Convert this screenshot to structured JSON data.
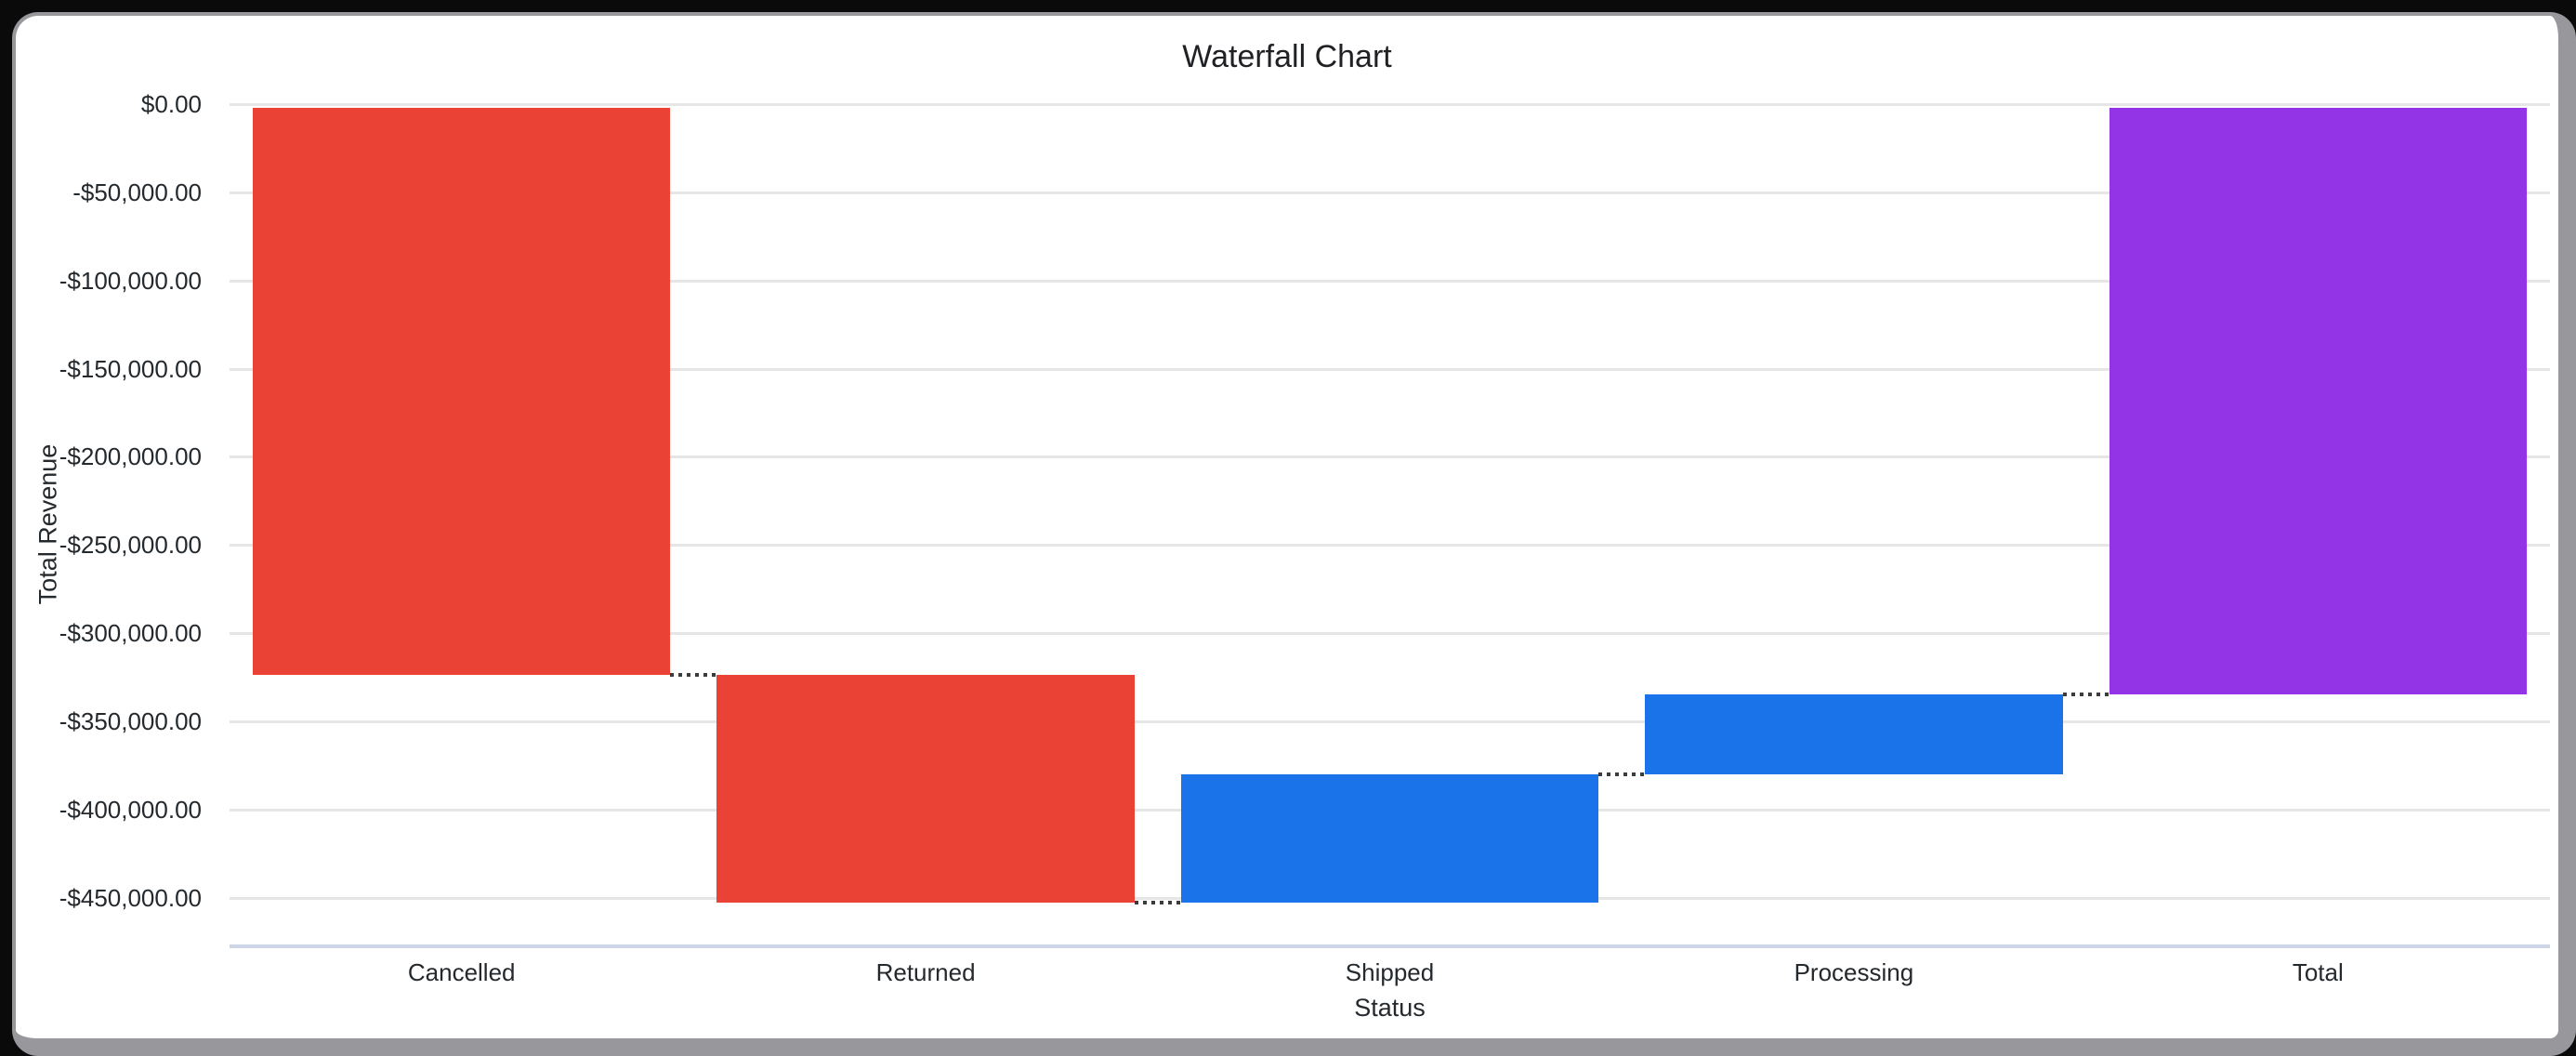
{
  "page": {
    "background": "#0a0a0a",
    "card": {
      "background": "#ffffff",
      "border_color": "#97979c"
    }
  },
  "chart_data": {
    "type": "waterfall",
    "title": "Waterfall Chart",
    "xlabel": "Status",
    "ylabel": "Total Revenue",
    "categories": [
      "Cancelled",
      "Returned",
      "Shipped",
      "Processing",
      "Total"
    ],
    "bars": [
      {
        "label": "Cancelled",
        "value": -323700,
        "start": 0,
        "end": -323700,
        "role": "decrease",
        "color": "#EA4335"
      },
      {
        "label": "Returned",
        "value": -129200,
        "start": -323700,
        "end": -452900,
        "role": "decrease",
        "color": "#EA4335"
      },
      {
        "label": "Shipped",
        "value": 72700,
        "start": -452900,
        "end": -380200,
        "role": "increase",
        "color": "#1A73E8"
      },
      {
        "label": "Processing",
        "value": 45400,
        "start": -380200,
        "end": -334800,
        "role": "increase",
        "color": "#1A73E8"
      },
      {
        "label": "Total",
        "value": -334800,
        "start": 0,
        "end": -334800,
        "role": "total",
        "color": "#9334E6"
      }
    ],
    "connectors": [
      {
        "from": "Cancelled",
        "to": "Returned",
        "value": -323700
      },
      {
        "from": "Returned",
        "to": "Shipped",
        "value": -452900
      },
      {
        "from": "Shipped",
        "to": "Processing",
        "value": -380200
      },
      {
        "from": "Processing",
        "to": "Total",
        "value": -334800
      }
    ],
    "y_ticks": [
      {
        "label": "$0.00",
        "value": 0
      },
      {
        "label": "-$50,000.00",
        "value": -50000
      },
      {
        "label": "-$100,000.00",
        "value": -100000
      },
      {
        "label": "-$150,000.00",
        "value": -150000
      },
      {
        "label": "-$200,000.00",
        "value": -200000
      },
      {
        "label": "-$250,000.00",
        "value": -250000
      },
      {
        "label": "-$300,000.00",
        "value": -300000
      },
      {
        "label": "-$350,000.00",
        "value": -350000
      },
      {
        "label": "-$400,000.00",
        "value": -400000
      },
      {
        "label": "-$450,000.00",
        "value": -450000
      }
    ],
    "ylim": [
      -476600,
      0
    ],
    "grid": "horizontal",
    "legend": "none",
    "connector_style": "dotted",
    "style": {
      "grid_color": "#e6e6e6",
      "zero_grid_color": "#e6e6e6",
      "axis_line_color": "#ccd6e8",
      "connector_color": "#3c3c3c",
      "tick_color": "#24292e",
      "title_color": "#202124",
      "bar_band_fill_ratio": 0.9
    }
  }
}
